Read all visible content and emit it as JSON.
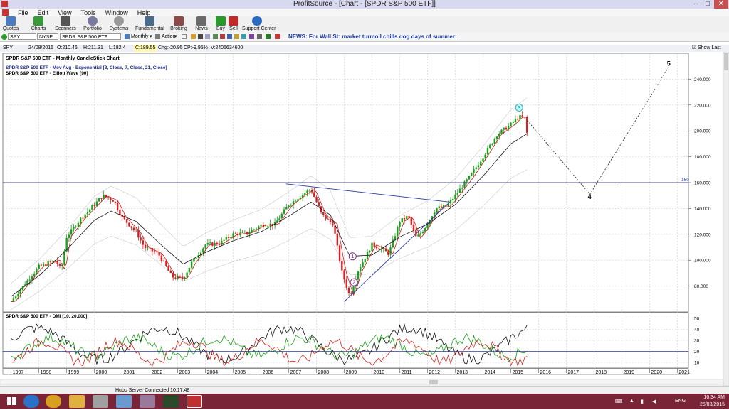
{
  "window": {
    "title": "ProfitSource - [Chart - [SPDR S&P 500 ETF]]"
  },
  "menu": [
    "File",
    "Edit",
    "View",
    "Tools",
    "Window",
    "Help"
  ],
  "toolbar": [
    "Quotes",
    "Charts",
    "Scanners",
    "Portfolio",
    "Systems",
    "Fundamental",
    "Broking",
    "News",
    "Buy",
    "Sell",
    "Support Center"
  ],
  "symbol_bar": {
    "symbol": "SPY",
    "exchange": "NYSE",
    "name": "SPDR S&P 500 ETF",
    "period": "Monthly",
    "action": "Action",
    "news": "NEWS: For Wall St: market turmoil chills dog days of summer:"
  },
  "quote_bar": {
    "symbol": "SPY",
    "date": "24/08/2015",
    "open": "O:210.46",
    "high": "H:211.31",
    "low": "L:182.4",
    "close": "C:189.55",
    "chg": "Chg:-20.95",
    "cp": "CP:-9.95%",
    "volume": "V:2405634600",
    "show_last": "Show Last"
  },
  "chart_data": [
    {
      "type": "candlestick",
      "title": "SPDR S&P 500 ETF - Monthly CandleStick Chart",
      "legend": [
        "SPDR S&P 500 ETF - Mov Avg - Exponential [3, Close, 7, Close, 21, Close]",
        "SPDR S&P 500 ETF - Elliott Wave [90]"
      ],
      "x_labels": [
        "1997",
        "1998",
        "1999",
        "2000",
        "2001",
        "2002",
        "2003",
        "2004",
        "2005",
        "2006",
        "2007",
        "2008",
        "2009",
        "2010",
        "2011",
        "2012",
        "2013",
        "2014",
        "2015",
        "2016",
        "2017",
        "2018",
        "2019",
        "2020",
        "2021"
      ],
      "y_ticks": [
        80,
        100,
        120,
        140,
        160,
        180,
        200,
        220,
        240
      ],
      "y_tick_labels": [
        "80.000",
        "100.000",
        "120.000",
        "140.000",
        "160.000",
        "180.000",
        "200.000",
        "220.000",
        "240.000"
      ],
      "ylim": [
        60,
        260
      ],
      "grid": true,
      "price_path": [
        [
          1997.0,
          68
        ],
        [
          1997.5,
          82
        ],
        [
          1998.0,
          95
        ],
        [
          1998.6,
          100
        ],
        [
          1998.8,
          92
        ],
        [
          1999.0,
          118
        ],
        [
          1999.5,
          132
        ],
        [
          2000.0,
          143
        ],
        [
          2000.3,
          150
        ],
        [
          2000.7,
          146
        ],
        [
          2001.0,
          133
        ],
        [
          2001.5,
          122
        ],
        [
          2001.8,
          110
        ],
        [
          2002.3,
          105
        ],
        [
          2002.8,
          87
        ],
        [
          2003.2,
          86
        ],
        [
          2003.5,
          98
        ],
        [
          2004.0,
          112
        ],
        [
          2004.5,
          113
        ],
        [
          2005.0,
          120
        ],
        [
          2005.5,
          121
        ],
        [
          2006.0,
          127
        ],
        [
          2006.5,
          128
        ],
        [
          2007.0,
          143
        ],
        [
          2007.5,
          151
        ],
        [
          2007.8,
          155
        ],
        [
          2008.2,
          135
        ],
        [
          2008.6,
          128
        ],
        [
          2008.9,
          92
        ],
        [
          2009.2,
          72
        ],
        [
          2009.5,
          92
        ],
        [
          2010.0,
          112
        ],
        [
          2010.4,
          108
        ],
        [
          2010.6,
          105
        ],
        [
          2011.0,
          130
        ],
        [
          2011.3,
          134
        ],
        [
          2011.6,
          117
        ],
        [
          2011.9,
          125
        ],
        [
          2012.3,
          140
        ],
        [
          2012.7,
          142
        ],
        [
          2013.0,
          150
        ],
        [
          2013.5,
          164
        ],
        [
          2014.0,
          180
        ],
        [
          2014.5,
          197
        ],
        [
          2015.0,
          205
        ],
        [
          2015.3,
          211
        ],
        [
          2015.5,
          210
        ],
        [
          2015.65,
          189
        ]
      ],
      "ema_slow": [
        [
          1997.0,
          72
        ],
        [
          1998.0,
          88
        ],
        [
          1999.0,
          108
        ],
        [
          2000.0,
          131
        ],
        [
          2000.6,
          138
        ],
        [
          2001.5,
          130
        ],
        [
          2002.5,
          110
        ],
        [
          2003.2,
          97
        ],
        [
          2004.0,
          106
        ],
        [
          2005.0,
          115
        ],
        [
          2006.0,
          122
        ],
        [
          2007.0,
          134
        ],
        [
          2007.8,
          145
        ],
        [
          2008.5,
          135
        ],
        [
          2009.2,
          103
        ],
        [
          2010.0,
          104
        ],
        [
          2011.0,
          118
        ],
        [
          2012.0,
          128
        ],
        [
          2013.0,
          143
        ],
        [
          2014.0,
          165
        ],
        [
          2015.0,
          190
        ],
        [
          2015.6,
          198
        ]
      ],
      "elliott_labels": [
        {
          "text": "1",
          "x": 2009.3,
          "y": 103
        },
        {
          "text": "2",
          "x": 2009.35,
          "y": 83
        },
        {
          "text": "3",
          "x": 2015.3,
          "y": 218
        },
        {
          "text": "4",
          "x": 2017.85,
          "y": 149
        },
        {
          "text": "5",
          "x": 2020.7,
          "y": 252
        }
      ],
      "projection": [
        [
          2015.6,
          208
        ],
        [
          2017.85,
          151
        ],
        [
          2020.7,
          250
        ]
      ],
      "level_line": {
        "value": 160,
        "label": "160"
      },
      "wave4_zone": [
        158,
        141
      ]
    },
    {
      "type": "line",
      "title": "SPDR S&P 500 ETF - DMI [10, 20.000]",
      "y_ticks": [
        10,
        20,
        30,
        40,
        50
      ],
      "ylim": [
        5,
        55
      ]
    }
  ],
  "status": {
    "server": "Hubb Server Connected 10:17:48"
  },
  "taskbar": {
    "time": "10:34 AM",
    "date": "25/08/2015",
    "lang": "ENG"
  }
}
